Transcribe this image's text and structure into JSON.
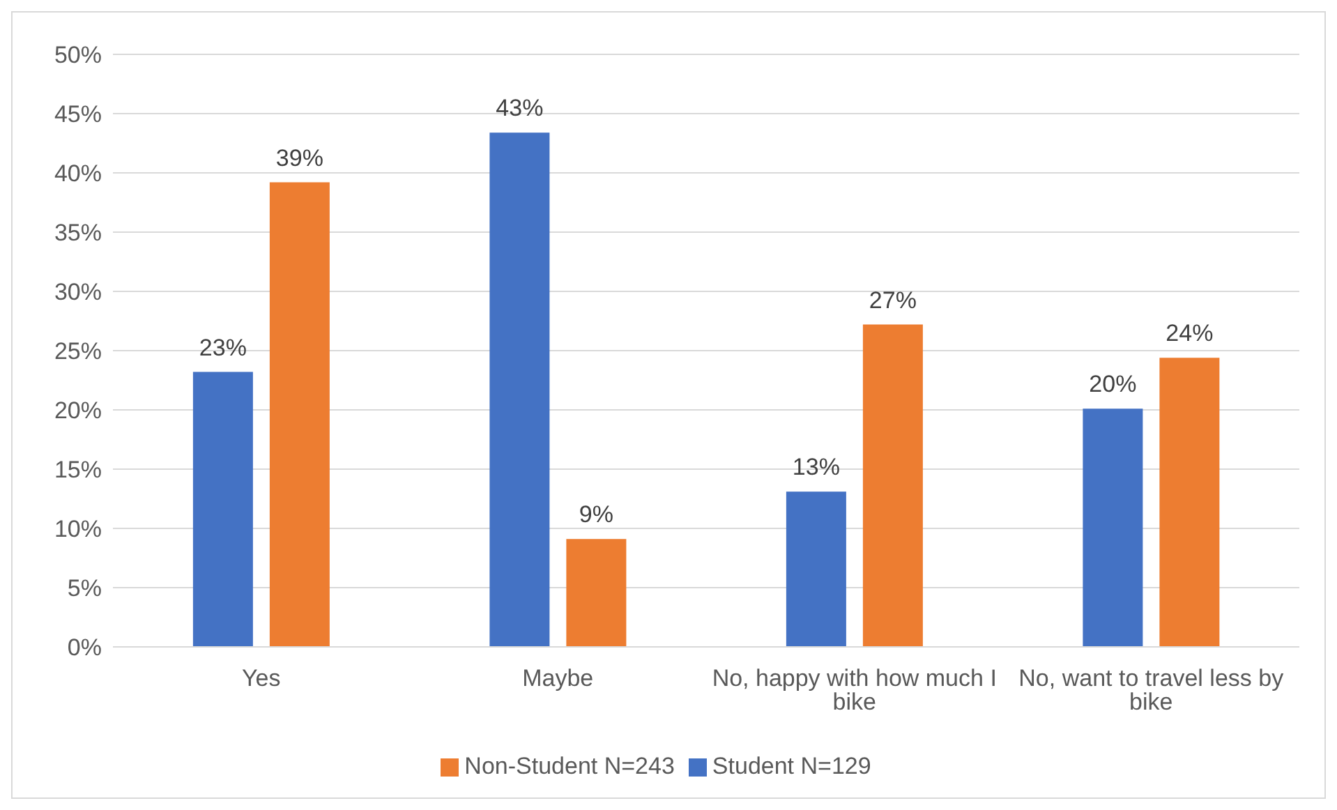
{
  "chart_data": {
    "type": "bar",
    "categories": [
      "Yes",
      "Maybe",
      "No, happy with how much I bike",
      "No, want to travel less by bike"
    ],
    "series": [
      {
        "name": "Student N=129",
        "color": "#4472c4",
        "values": [
          23.2,
          43.4,
          13.1,
          20.1
        ],
        "value_labels": [
          "23%",
          "43%",
          "13%",
          "20%"
        ]
      },
      {
        "name": "Non-Student N=243",
        "color": "#ed7d31",
        "values": [
          39.2,
          9.1,
          27.2,
          24.4
        ],
        "value_labels": [
          "39%",
          "9%",
          "27%",
          "24%"
        ]
      }
    ],
    "ylim": [
      0,
      50
    ],
    "yticks": [
      {
        "value": 0,
        "label": "0%"
      },
      {
        "value": 5,
        "label": "5%"
      },
      {
        "value": 10,
        "label": "10%"
      },
      {
        "value": 15,
        "label": "15%"
      },
      {
        "value": 20,
        "label": "20%"
      },
      {
        "value": 25,
        "label": "25%"
      },
      {
        "value": 30,
        "label": "30%"
      },
      {
        "value": 35,
        "label": "35%"
      },
      {
        "value": 40,
        "label": "40%"
      },
      {
        "value": 45,
        "label": "45%"
      },
      {
        "value": 50,
        "label": "50%"
      }
    ],
    "grid": "y",
    "legend": "bottom"
  }
}
